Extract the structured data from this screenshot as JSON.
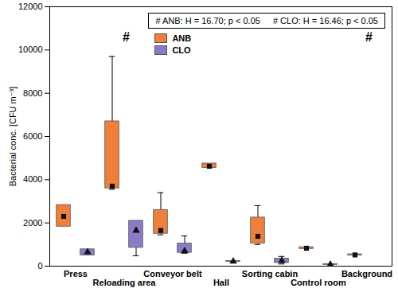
{
  "chart_data": {
    "type": "box",
    "y_label": "Bacterial conc. [CFU m⁻³]",
    "categories": [
      "Press",
      "Reloading area",
      "Conveyor belt",
      "Hall",
      "Sorting cabin",
      "Control room",
      "Background"
    ],
    "ylim": [
      0,
      12000
    ],
    "yticks": [
      0,
      2000,
      4000,
      6000,
      8000,
      10000,
      12000
    ],
    "grid": false,
    "legend": "top-right",
    "annotation_box": [
      "# ANB: H = 16.70; p < 0.05",
      "# CLO: H = 16.46; p < 0.05"
    ],
    "series": [
      {
        "name": "ANB",
        "color": "#F07F3A",
        "marker": "square",
        "min": [
          1830,
          3550,
          1450,
          4550,
          1000,
          800,
          500
        ],
        "q1": [
          1830,
          3600,
          1500,
          4550,
          1050,
          800,
          500
        ],
        "median": [
          2300,
          3700,
          1650,
          4620,
          1380,
          830,
          520
        ],
        "q3": [
          2830,
          6700,
          2600,
          4750,
          2250,
          880,
          550
        ],
        "max": [
          2830,
          9700,
          3400,
          4750,
          2800,
          880,
          550
        ]
      },
      {
        "name": "CLO",
        "color": "#8A7BC8",
        "marker": "triangle",
        "min": [
          500,
          480,
          600,
          200,
          100,
          60,
          null
        ],
        "q1": [
          500,
          850,
          620,
          200,
          150,
          60,
          null
        ],
        "median": [
          650,
          1650,
          700,
          220,
          250,
          80,
          null
        ],
        "q3": [
          780,
          2100,
          1050,
          240,
          350,
          100,
          null
        ],
        "max": [
          780,
          2100,
          1400,
          240,
          450,
          100,
          null
        ]
      }
    ],
    "annotations": [
      {
        "text": "#",
        "category": "Reloading area",
        "series": "ANB",
        "y": 10600
      },
      {
        "text": "#",
        "category": "Background",
        "series": "ANB",
        "y": 10600
      }
    ]
  }
}
